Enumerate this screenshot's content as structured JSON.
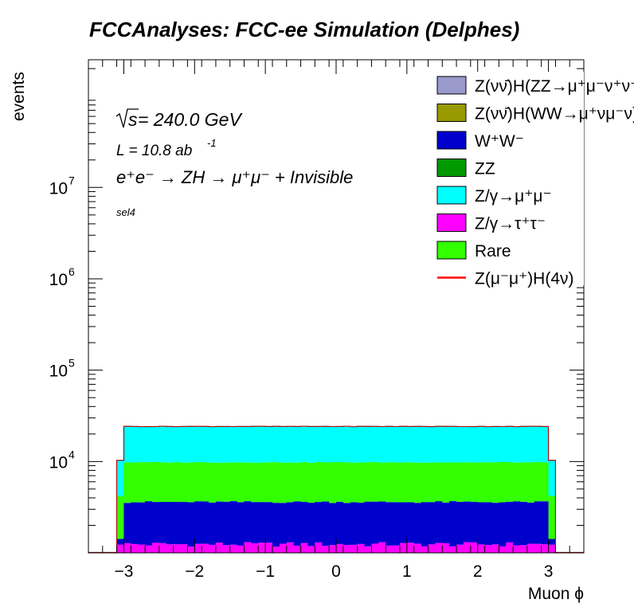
{
  "chart_data": {
    "type": "bar",
    "stacked": true,
    "title": "FCCAnalyses: FCC-ee Simulation (Delphes)",
    "xlabel": "Muon ϕ",
    "ylabel": "events",
    "xlim": [
      -3.5,
      3.5
    ],
    "ylim": [
      1000,
      250000000
    ],
    "yscale": "log",
    "grid": false,
    "legend_position": "top-right",
    "x_ticks": [
      -3,
      -2,
      -1,
      0,
      1,
      2,
      3
    ],
    "x_tick_labels": [
      "−3",
      "−2",
      "−1",
      "0",
      "1",
      "2",
      "3"
    ],
    "y_ticks": [
      {
        "value": 10000,
        "base": "10",
        "exp": "4"
      },
      {
        "value": 100000,
        "base": "10",
        "exp": "5"
      },
      {
        "value": 1000000,
        "base": "10",
        "exp": "6"
      },
      {
        "value": 10000000,
        "base": "10",
        "exp": "7"
      }
    ],
    "annotations": {
      "sqrt_s": "s",
      "energy": " = 240.0 GeV",
      "lumi_main": "L = 10.8 ab",
      "lumi_exp": "-1",
      "process": "e⁺e⁻ → ZH → μ⁺μ⁻ + Invisible",
      "selection": "sel4"
    },
    "legend": [
      {
        "label": "Z(νν̄)H(ZZ→μ⁺μ⁻ν⁺ν⁻)",
        "color": "#9999cc",
        "kind": "box"
      },
      {
        "label": "Z(νν̄)H(WW→μ⁺νμ⁻ν)",
        "color": "#999900",
        "kind": "box"
      },
      {
        "label": "W⁺W⁻",
        "color": "#0000cc",
        "kind": "box"
      },
      {
        "label": "ZZ",
        "color": "#009900",
        "kind": "box"
      },
      {
        "label": "Z/γ→μ⁺μ⁻",
        "color": "#00ffff",
        "kind": "box"
      },
      {
        "label": "Z/γ→τ⁺τ⁻",
        "color": "#ff00ff",
        "kind": "box"
      },
      {
        "label": "Rare",
        "color": "#33ff00",
        "kind": "box"
      },
      {
        "label": "Z(μ⁻μ⁺)H(4ν)",
        "color": "#ff0000",
        "kind": "line"
      }
    ],
    "bins": {
      "low": -3.5,
      "high": 3.5,
      "n": 70,
      "support": [
        -3.14159,
        3.14159
      ]
    },
    "stack": [
      {
        "name": "Z/γ→τ⁺τ⁻",
        "color": "#ff00ff",
        "level": 1240
      },
      {
        "name": "W⁺W⁻",
        "color": "#0000cc",
        "level": 3600
      },
      {
        "name": "Rare",
        "color": "#33ff00",
        "level": 9800
      },
      {
        "name": "Z/γ→μ⁺μ⁻",
        "color": "#00ffff",
        "level": 24200
      }
    ],
    "edge_bins": {
      "level_tautau": 1230,
      "level_ww": 1420,
      "level_rare": 4200,
      "level_top": 10300
    },
    "signal": {
      "name": "Z(μ⁻μ⁺)H(4ν)",
      "color": "#ff0000",
      "level": 24200
    }
  }
}
